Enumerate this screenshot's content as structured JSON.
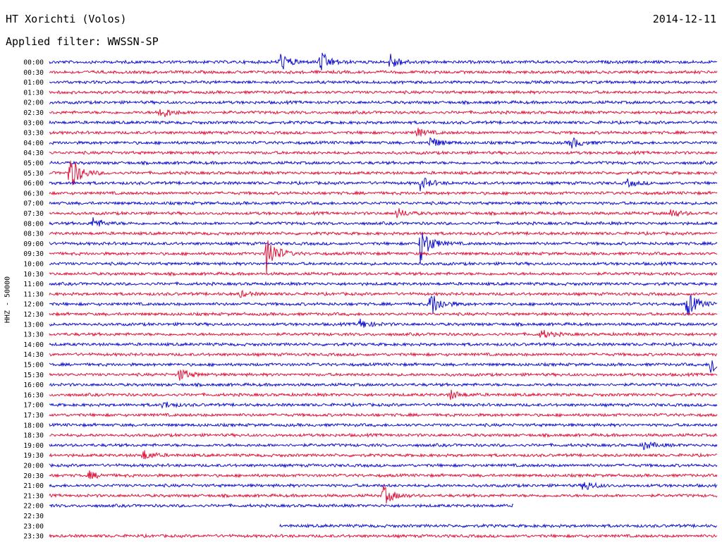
{
  "header": {
    "title": "HT Xorichti (Volos)",
    "filter_label": "Applied filter: WWSSN-SP",
    "date": "2014-12-11"
  },
  "chart_data": {
    "type": "line",
    "title": "HT Xorichti (Volos)",
    "subtitle": "Applied filter: WWSSN-SP",
    "date": "2014-12-11",
    "ylabel": "HHZ - 50000",
    "xlabel": "",
    "row_labels": [
      "00:00",
      "00:30",
      "01:00",
      "01:30",
      "02:00",
      "02:30",
      "03:00",
      "03:30",
      "04:00",
      "04:30",
      "05:00",
      "05:30",
      "06:00",
      "06:30",
      "07:00",
      "07:30",
      "08:00",
      "08:30",
      "09:00",
      "09:30",
      "10:00",
      "10:30",
      "11:00",
      "11:30",
      "12:00",
      "12:30",
      "13:00",
      "13:30",
      "14:00",
      "14:30",
      "15:00",
      "15:30",
      "16:00",
      "16:30",
      "17:00",
      "17:30",
      "18:00",
      "18:30",
      "19:00",
      "19:30",
      "20:00",
      "20:30",
      "21:00",
      "21:30",
      "22:00",
      "22:30",
      "23:00",
      "23:30"
    ],
    "row_minutes": 30,
    "colors": {
      "even_rows": "#1010d0",
      "odd_rows": "#e0143c"
    },
    "data_coverage": [
      {
        "row": "22:00",
        "start_fraction": 0.0,
        "end_fraction": 0.695
      },
      {
        "row": "22:30",
        "start_fraction": null,
        "end_fraction": null
      },
      {
        "row": "23:00",
        "start_fraction": 0.345,
        "end_fraction": 1.0
      }
    ],
    "events": [
      {
        "row": "00:00",
        "at": 0.345,
        "amplitude": 14
      },
      {
        "row": "00:00",
        "at": 0.405,
        "amplitude": 16
      },
      {
        "row": "00:00",
        "at": 0.51,
        "amplitude": 12
      },
      {
        "row": "02:30",
        "at": 0.165,
        "amplitude": 10
      },
      {
        "row": "03:30",
        "at": 0.55,
        "amplitude": 6
      },
      {
        "row": "04:00",
        "at": 0.57,
        "amplitude": 8
      },
      {
        "row": "04:00",
        "at": 0.78,
        "amplitude": 9
      },
      {
        "row": "05:30",
        "at": 0.03,
        "amplitude": 28
      },
      {
        "row": "06:00",
        "at": 0.555,
        "amplitude": 10
      },
      {
        "row": "06:00",
        "at": 0.865,
        "amplitude": 5
      },
      {
        "row": "07:30",
        "at": 0.52,
        "amplitude": 7
      },
      {
        "row": "07:30",
        "at": 0.93,
        "amplitude": 6
      },
      {
        "row": "08:00",
        "at": 0.065,
        "amplitude": 8
      },
      {
        "row": "09:00",
        "at": 0.555,
        "amplitude": 28
      },
      {
        "row": "09:30",
        "at": 0.325,
        "amplitude": 28
      },
      {
        "row": "11:30",
        "at": 0.285,
        "amplitude": 4
      },
      {
        "row": "12:00",
        "at": 0.57,
        "amplitude": 20
      },
      {
        "row": "12:00",
        "at": 0.955,
        "amplitude": 18
      },
      {
        "row": "13:00",
        "at": 0.465,
        "amplitude": 7
      },
      {
        "row": "13:30",
        "at": 0.735,
        "amplitude": 7
      },
      {
        "row": "15:00",
        "at": 0.99,
        "amplitude": 18
      },
      {
        "row": "15:30",
        "at": 0.195,
        "amplitude": 9
      },
      {
        "row": "16:30",
        "at": 0.6,
        "amplitude": 7
      },
      {
        "row": "17:00",
        "at": 0.17,
        "amplitude": 5
      },
      {
        "row": "19:00",
        "at": 0.89,
        "amplitude": 6
      },
      {
        "row": "19:30",
        "at": 0.14,
        "amplitude": 7
      },
      {
        "row": "20:30",
        "at": 0.06,
        "amplitude": 5
      },
      {
        "row": "21:00",
        "at": 0.8,
        "amplitude": 8
      },
      {
        "row": "21:30",
        "at": 0.5,
        "amplitude": 14
      }
    ]
  }
}
